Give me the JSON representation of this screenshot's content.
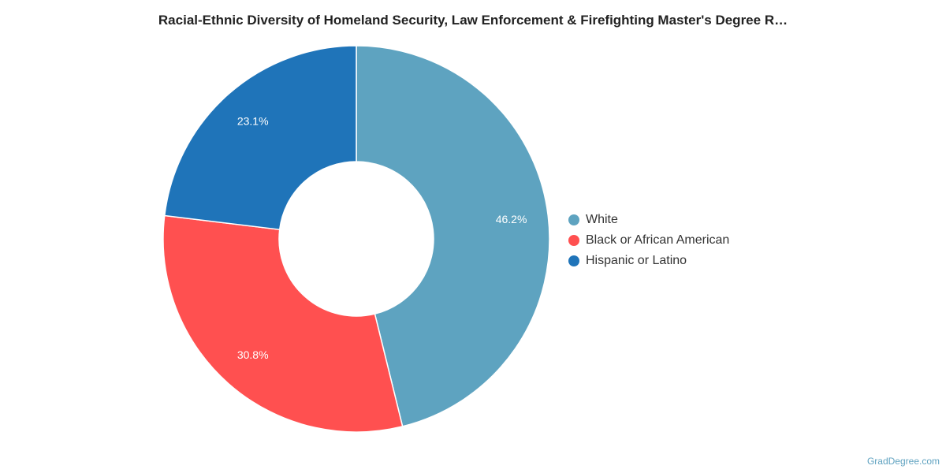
{
  "chart_data": {
    "type": "pie",
    "variant": "donut",
    "title": "Racial-Ethnic Diversity of Homeland Security, Law Enforcement & Firefighting Master's Degree R…",
    "slices": [
      {
        "label": "White",
        "value": 46.2,
        "display": "46.2%",
        "color": "#5ea3c0"
      },
      {
        "label": "Black or African American",
        "value": 30.8,
        "display": "30.8%",
        "color": "#ff5050"
      },
      {
        "label": "Hispanic or Latino",
        "value": 23.1,
        "display": "23.1%",
        "color": "#1f74b9"
      }
    ],
    "legend_position": "right",
    "start_angle": "top",
    "direction": "clockwise"
  },
  "credit": "GradDegree.com"
}
